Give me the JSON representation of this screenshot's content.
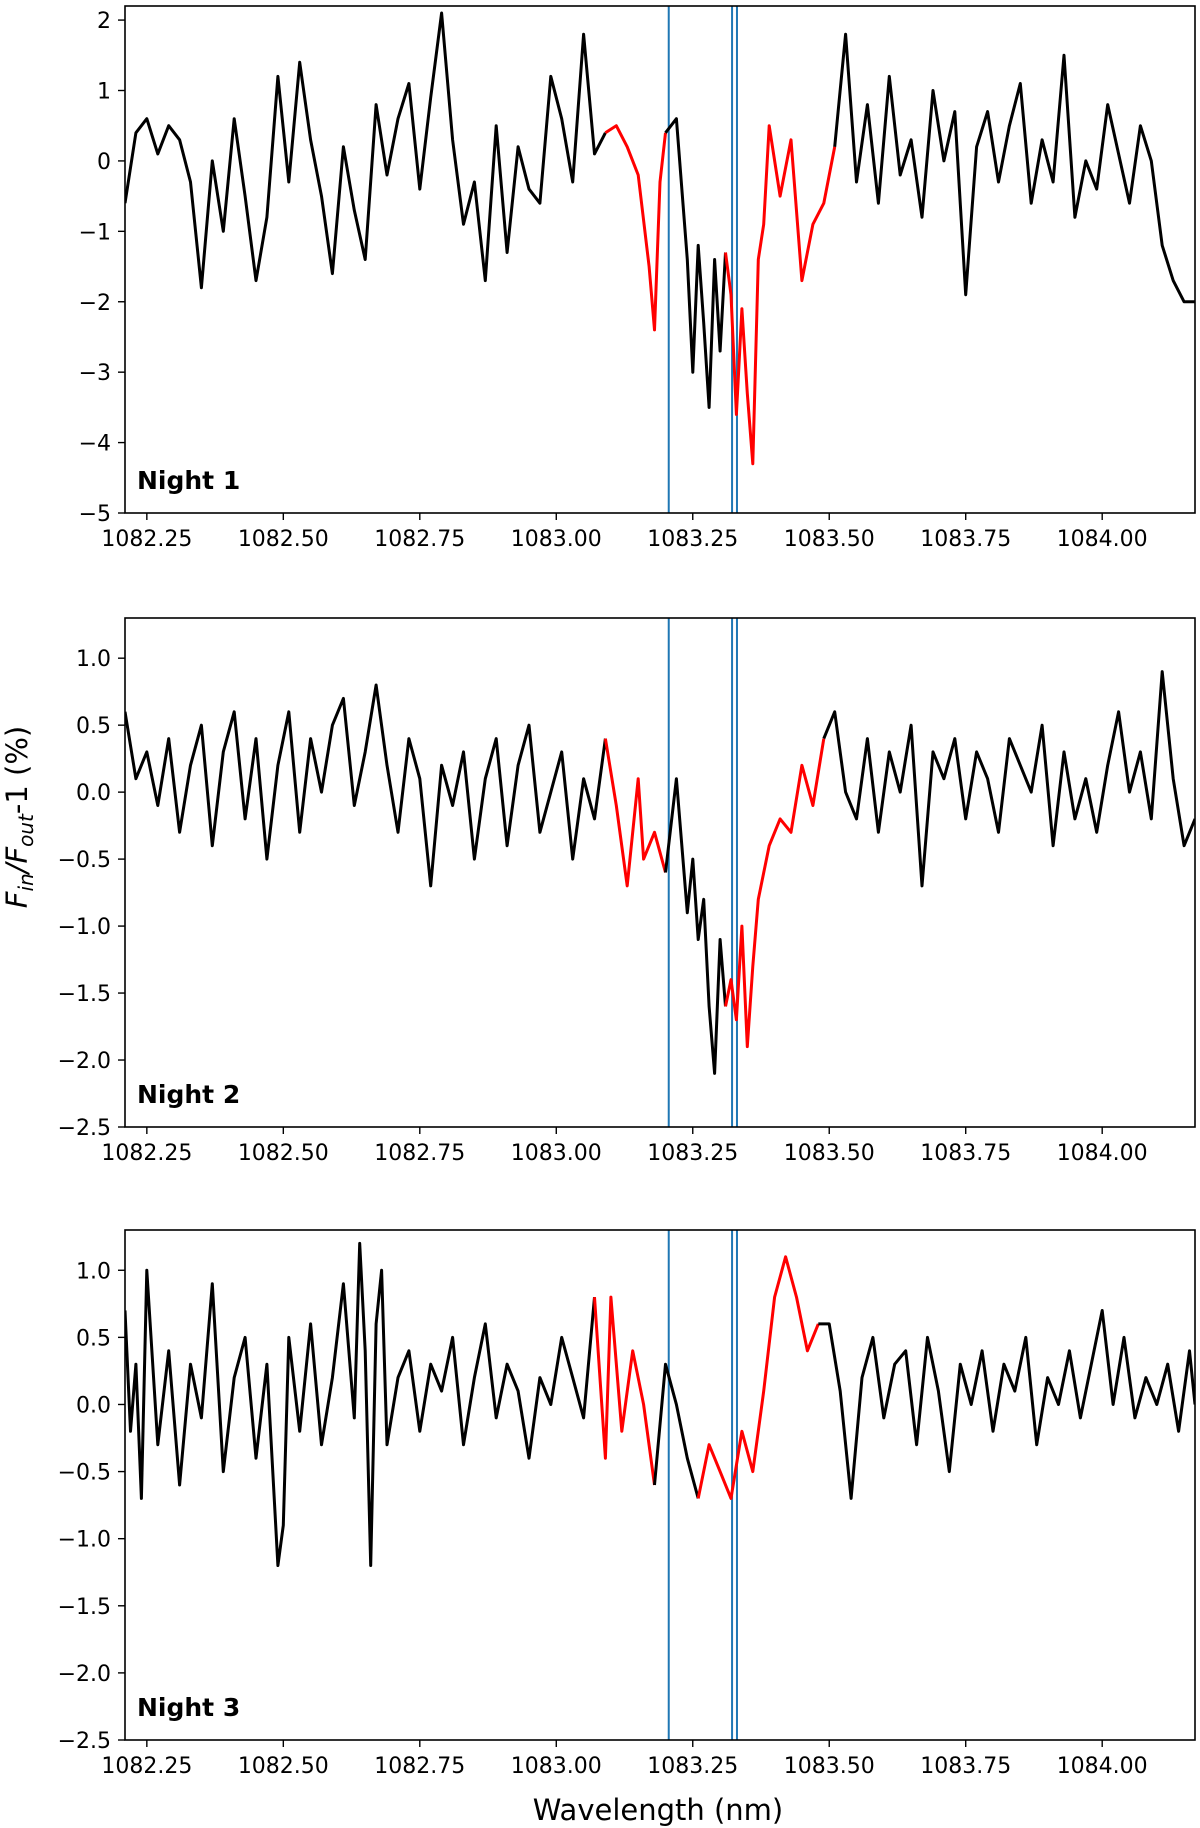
{
  "chart_data": [
    {
      "type": "line",
      "panel_label": "Night 1",
      "xlim": [
        1082.21,
        1084.17
      ],
      "ylim": [
        -5,
        2.2
      ],
      "x_ticks": [
        1082.25,
        1082.5,
        1082.75,
        1083.0,
        1083.25,
        1083.5,
        1083.75,
        1084.0
      ],
      "x_tick_labels": [
        "1082.25",
        "1082.50",
        "1082.75",
        "1083.00",
        "1083.25",
        "1083.50",
        "1083.75",
        "1084.00"
      ],
      "y_ticks": [
        -5,
        -4,
        -3,
        -2,
        -1,
        0,
        1,
        2
      ],
      "y_tick_labels": [
        "−5",
        "−4",
        "−3",
        "−2",
        "−1",
        "0",
        "1",
        "2"
      ],
      "vlines": [
        1083.206,
        1083.322,
        1083.331
      ],
      "highlight_ranges": [
        [
          1083.1,
          1083.2
        ],
        [
          1083.31,
          1083.51
        ]
      ],
      "x": [
        1082.21,
        1082.23,
        1082.25,
        1082.27,
        1082.29,
        1082.31,
        1082.33,
        1082.35,
        1082.37,
        1082.39,
        1082.41,
        1082.43,
        1082.45,
        1082.47,
        1082.49,
        1082.51,
        1082.53,
        1082.55,
        1082.57,
        1082.59,
        1082.61,
        1082.63,
        1082.65,
        1082.67,
        1082.69,
        1082.71,
        1082.73,
        1082.75,
        1082.77,
        1082.79,
        1082.81,
        1082.83,
        1082.85,
        1082.87,
        1082.89,
        1082.91,
        1082.93,
        1082.95,
        1082.97,
        1082.99,
        1083.01,
        1083.03,
        1083.05,
        1083.07,
        1083.09,
        1083.11,
        1083.13,
        1083.15,
        1083.17,
        1083.18,
        1083.19,
        1083.2,
        1083.22,
        1083.24,
        1083.25,
        1083.26,
        1083.27,
        1083.28,
        1083.29,
        1083.3,
        1083.31,
        1083.32,
        1083.33,
        1083.34,
        1083.35,
        1083.36,
        1083.37,
        1083.38,
        1083.39,
        1083.41,
        1083.43,
        1083.45,
        1083.47,
        1083.49,
        1083.51,
        1083.53,
        1083.55,
        1083.57,
        1083.59,
        1083.61,
        1083.63,
        1083.65,
        1083.67,
        1083.69,
        1083.71,
        1083.73,
        1083.75,
        1083.77,
        1083.79,
        1083.81,
        1083.83,
        1083.85,
        1083.87,
        1083.89,
        1083.91,
        1083.93,
        1083.95,
        1083.97,
        1083.99,
        1084.01,
        1084.03,
        1084.05,
        1084.07,
        1084.09,
        1084.11,
        1084.13,
        1084.15,
        1084.17
      ],
      "y": [
        -0.6,
        0.4,
        0.6,
        0.1,
        0.5,
        0.3,
        -0.3,
        -1.8,
        0.0,
        -1.0,
        0.6,
        -0.5,
        -1.7,
        -0.8,
        1.2,
        -0.3,
        1.4,
        0.3,
        -0.5,
        -1.6,
        0.2,
        -0.7,
        -1.4,
        0.8,
        -0.2,
        0.6,
        1.1,
        -0.4,
        0.9,
        2.1,
        0.3,
        -0.9,
        -0.3,
        -1.7,
        0.5,
        -1.3,
        0.2,
        -0.4,
        -0.6,
        1.2,
        0.6,
        -0.3,
        1.8,
        0.1,
        0.4,
        0.5,
        0.2,
        -0.2,
        -1.5,
        -2.4,
        -0.3,
        0.4,
        0.6,
        -1.4,
        -3.0,
        -1.2,
        -2.3,
        -3.5,
        -1.4,
        -2.7,
        -1.3,
        -1.9,
        -3.6,
        -2.1,
        -3.3,
        -4.3,
        -1.4,
        -0.9,
        0.5,
        -0.5,
        0.3,
        -1.7,
        -0.9,
        -0.6,
        0.2,
        1.8,
        -0.3,
        0.8,
        -0.6,
        1.2,
        -0.2,
        0.3,
        -0.8,
        1.0,
        0.0,
        0.7,
        -1.9,
        0.2,
        0.7,
        -0.3,
        0.5,
        1.1,
        -0.6,
        0.3,
        -0.3,
        1.5,
        -0.8,
        0.0,
        -0.4,
        0.8,
        0.1,
        -0.6,
        0.5,
        0.0,
        -1.2,
        -1.7,
        -2.0,
        -2.0
      ]
    },
    {
      "type": "line",
      "panel_label": "Night 2",
      "xlim": [
        1082.21,
        1084.17
      ],
      "ylim": [
        -2.5,
        1.3
      ],
      "x_ticks": [
        1082.25,
        1082.5,
        1082.75,
        1083.0,
        1083.25,
        1083.5,
        1083.75,
        1084.0
      ],
      "x_tick_labels": [
        "1082.25",
        "1082.50",
        "1082.75",
        "1083.00",
        "1083.25",
        "1083.50",
        "1083.75",
        "1084.00"
      ],
      "y_ticks": [
        -2.5,
        -2.0,
        -1.5,
        -1.0,
        -0.5,
        0.0,
        0.5,
        1.0
      ],
      "y_tick_labels": [
        "−2.5",
        "−2.0",
        "−1.5",
        "−1.0",
        "−0.5",
        "0.0",
        "0.5",
        "1.0"
      ],
      "vlines": [
        1083.206,
        1083.322,
        1083.331
      ],
      "highlight_ranges": [
        [
          1083.09,
          1083.2
        ],
        [
          1083.31,
          1083.49
        ]
      ],
      "x": [
        1082.21,
        1082.23,
        1082.25,
        1082.27,
        1082.29,
        1082.31,
        1082.33,
        1082.35,
        1082.37,
        1082.39,
        1082.41,
        1082.43,
        1082.45,
        1082.47,
        1082.49,
        1082.51,
        1082.53,
        1082.55,
        1082.57,
        1082.59,
        1082.61,
        1082.63,
        1082.65,
        1082.67,
        1082.69,
        1082.71,
        1082.73,
        1082.75,
        1082.77,
        1082.79,
        1082.81,
        1082.83,
        1082.85,
        1082.87,
        1082.89,
        1082.91,
        1082.93,
        1082.95,
        1082.97,
        1082.99,
        1083.01,
        1083.03,
        1083.05,
        1083.07,
        1083.09,
        1083.11,
        1083.13,
        1083.15,
        1083.16,
        1083.18,
        1083.2,
        1083.22,
        1083.24,
        1083.25,
        1083.26,
        1083.27,
        1083.28,
        1083.29,
        1083.3,
        1083.31,
        1083.32,
        1083.33,
        1083.34,
        1083.35,
        1083.36,
        1083.37,
        1083.39,
        1083.41,
        1083.43,
        1083.45,
        1083.47,
        1083.49,
        1083.51,
        1083.53,
        1083.55,
        1083.57,
        1083.59,
        1083.61,
        1083.63,
        1083.65,
        1083.67,
        1083.69,
        1083.71,
        1083.73,
        1083.75,
        1083.77,
        1083.79,
        1083.81,
        1083.83,
        1083.85,
        1083.87,
        1083.89,
        1083.91,
        1083.93,
        1083.95,
        1083.97,
        1083.99,
        1084.01,
        1084.03,
        1084.05,
        1084.07,
        1084.09,
        1084.11,
        1084.13,
        1084.15,
        1084.17
      ],
      "y": [
        0.6,
        0.1,
        0.3,
        -0.1,
        0.4,
        -0.3,
        0.2,
        0.5,
        -0.4,
        0.3,
        0.6,
        -0.2,
        0.4,
        -0.5,
        0.2,
        0.6,
        -0.3,
        0.4,
        0.0,
        0.5,
        0.7,
        -0.1,
        0.3,
        0.8,
        0.2,
        -0.3,
        0.4,
        0.1,
        -0.7,
        0.2,
        -0.1,
        0.3,
        -0.5,
        0.1,
        0.4,
        -0.4,
        0.2,
        0.5,
        -0.3,
        0.0,
        0.3,
        -0.5,
        0.1,
        -0.2,
        0.4,
        -0.1,
        -0.7,
        0.1,
        -0.5,
        -0.3,
        -0.6,
        0.1,
        -0.9,
        -0.5,
        -1.1,
        -0.8,
        -1.6,
        -2.1,
        -1.1,
        -1.6,
        -1.4,
        -1.7,
        -1.0,
        -1.9,
        -1.3,
        -0.8,
        -0.4,
        -0.2,
        -0.3,
        0.2,
        -0.1,
        0.4,
        0.6,
        0.0,
        -0.2,
        0.4,
        -0.3,
        0.3,
        0.0,
        0.5,
        -0.7,
        0.3,
        0.1,
        0.4,
        -0.2,
        0.3,
        0.1,
        -0.3,
        0.4,
        0.2,
        0.0,
        0.5,
        -0.4,
        0.3,
        -0.2,
        0.1,
        -0.3,
        0.2,
        0.6,
        0.0,
        0.3,
        -0.2,
        0.9,
        0.1,
        -0.4,
        -0.2
      ]
    },
    {
      "type": "line",
      "panel_label": "Night 3",
      "xlim": [
        1082.21,
        1084.17
      ],
      "ylim": [
        -2.5,
        1.3
      ],
      "x_ticks": [
        1082.25,
        1082.5,
        1082.75,
        1083.0,
        1083.25,
        1083.5,
        1083.75,
        1084.0
      ],
      "x_tick_labels": [
        "1082.25",
        "1082.50",
        "1082.75",
        "1083.00",
        "1083.25",
        "1083.50",
        "1083.75",
        "1084.00"
      ],
      "y_ticks": [
        -2.5,
        -2.0,
        -1.5,
        -1.0,
        -0.5,
        0.0,
        0.5,
        1.0
      ],
      "y_tick_labels": [
        "−2.5",
        "−2.0",
        "−1.5",
        "−1.0",
        "−0.5",
        "0.0",
        "0.5",
        "1.0"
      ],
      "vlines": [
        1083.206,
        1083.322,
        1083.331
      ],
      "highlight_ranges": [
        [
          1083.07,
          1083.18
        ],
        [
          1083.26,
          1083.47
        ]
      ],
      "x": [
        1082.21,
        1082.22,
        1082.23,
        1082.24,
        1082.25,
        1082.27,
        1082.29,
        1082.31,
        1082.33,
        1082.35,
        1082.37,
        1082.39,
        1082.41,
        1082.43,
        1082.45,
        1082.47,
        1082.49,
        1082.5,
        1082.51,
        1082.53,
        1082.55,
        1082.57,
        1082.59,
        1082.61,
        1082.63,
        1082.64,
        1082.65,
        1082.66,
        1082.67,
        1082.68,
        1082.69,
        1082.71,
        1082.73,
        1082.75,
        1082.77,
        1082.79,
        1082.81,
        1082.83,
        1082.85,
        1082.87,
        1082.89,
        1082.91,
        1082.93,
        1082.95,
        1082.97,
        1082.99,
        1083.01,
        1083.03,
        1083.05,
        1083.07,
        1083.09,
        1083.1,
        1083.12,
        1083.14,
        1083.16,
        1083.18,
        1083.2,
        1083.22,
        1083.24,
        1083.26,
        1083.28,
        1083.3,
        1083.32,
        1083.34,
        1083.36,
        1083.38,
        1083.4,
        1083.42,
        1083.44,
        1083.46,
        1083.48,
        1083.5,
        1083.52,
        1083.54,
        1083.56,
        1083.58,
        1083.6,
        1083.62,
        1083.64,
        1083.66,
        1083.68,
        1083.7,
        1083.72,
        1083.74,
        1083.76,
        1083.78,
        1083.8,
        1083.82,
        1083.84,
        1083.86,
        1083.88,
        1083.9,
        1083.92,
        1083.94,
        1083.96,
        1083.98,
        1084.0,
        1084.02,
        1084.04,
        1084.06,
        1084.08,
        1084.1,
        1084.12,
        1084.14,
        1084.16,
        1084.17
      ],
      "y": [
        0.7,
        -0.2,
        0.3,
        -0.7,
        1.0,
        -0.3,
        0.4,
        -0.6,
        0.3,
        -0.1,
        0.9,
        -0.5,
        0.2,
        0.5,
        -0.4,
        0.3,
        -1.2,
        -0.9,
        0.5,
        -0.2,
        0.6,
        -0.3,
        0.2,
        0.9,
        -0.1,
        1.2,
        0.4,
        -1.2,
        0.6,
        1.0,
        -0.3,
        0.2,
        0.4,
        -0.2,
        0.3,
        0.1,
        0.5,
        -0.3,
        0.2,
        0.6,
        -0.1,
        0.3,
        0.1,
        -0.4,
        0.2,
        0.0,
        0.5,
        0.2,
        -0.1,
        0.8,
        -0.4,
        0.8,
        -0.2,
        0.4,
        0.0,
        -0.6,
        0.3,
        0.0,
        -0.4,
        -0.7,
        -0.3,
        -0.5,
        -0.7,
        -0.2,
        -0.5,
        0.1,
        0.8,
        1.1,
        0.8,
        0.4,
        0.6,
        0.6,
        0.1,
        -0.7,
        0.2,
        0.5,
        -0.1,
        0.3,
        0.4,
        -0.3,
        0.5,
        0.1,
        -0.5,
        0.3,
        0.0,
        0.4,
        -0.2,
        0.3,
        0.1,
        0.5,
        -0.3,
        0.2,
        0.0,
        0.4,
        -0.1,
        0.3,
        0.7,
        0.0,
        0.5,
        -0.1,
        0.2,
        0.0,
        0.3,
        -0.2,
        0.4,
        0.0
      ]
    }
  ],
  "shared": {
    "xlabel": "Wavelength (nm)",
    "ylabel_parts": {
      "f1": "F",
      "sub_in": "in",
      "slash": "/",
      "f2": "F",
      "sub_out": "out",
      "rest": "-1 (%)"
    },
    "colors": {
      "line": "#000000",
      "highlight": "#ff0000",
      "vline": "#1f77b4",
      "axes": "#000000"
    }
  }
}
